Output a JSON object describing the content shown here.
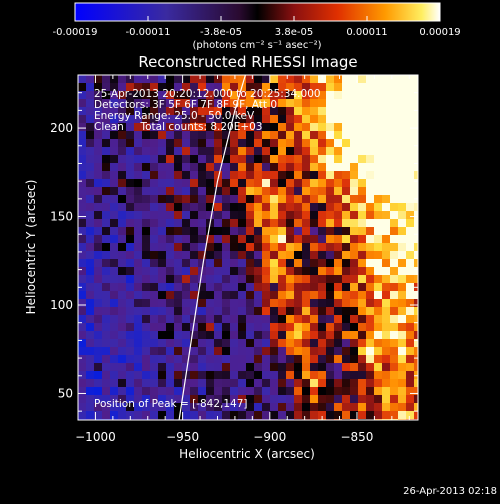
{
  "colorbar": {
    "tick_labels": [
      "-0.00019",
      "-0.00011",
      "-3.8e-05",
      "3.8e-05",
      "0.00011",
      "0.00019"
    ],
    "units": "(photons cm⁻² s⁻¹ asec⁻²)"
  },
  "chart_data": {
    "type": "heatmap",
    "title": "Reconstructed RHESSI Image",
    "xlabel": "Heliocentric X (arcsec)",
    "ylabel": "Heliocentric Y (arcsec)",
    "xlim": [
      -1010,
      -815
    ],
    "ylim": [
      35,
      230
    ],
    "x_ticks": [
      -1000,
      -950,
      -900,
      -850
    ],
    "x_tick_labels": [
      "−1000",
      "−950",
      "−900",
      "−850"
    ],
    "y_ticks": [
      50,
      100,
      150,
      200
    ],
    "y_tick_labels": [
      "50",
      "100",
      "150",
      "200"
    ],
    "color_range": [
      -0.00019,
      0.00019
    ],
    "limb_curve": [
      [
        -952,
        35
      ],
      [
        -945,
        80
      ],
      [
        -938,
        125
      ],
      [
        -930,
        170
      ],
      [
        -920,
        210
      ],
      [
        -914,
        230
      ]
    ],
    "annotations": [
      "25-Apr-2013 20:20:12.000 to 20:25:34.000",
      "Detectors: 3F 5F 6F 7F 8F 9F, Att 0",
      "Energy Range: 25.0 - 50.0 keV",
      "Clean     Total counts: 8.20E+03"
    ],
    "peak_label": "Position of Peak = [-842,147]",
    "peak": [
      -842,
      147
    ]
  },
  "footer": {
    "timestamp": "26-Apr-2013 02:18"
  }
}
